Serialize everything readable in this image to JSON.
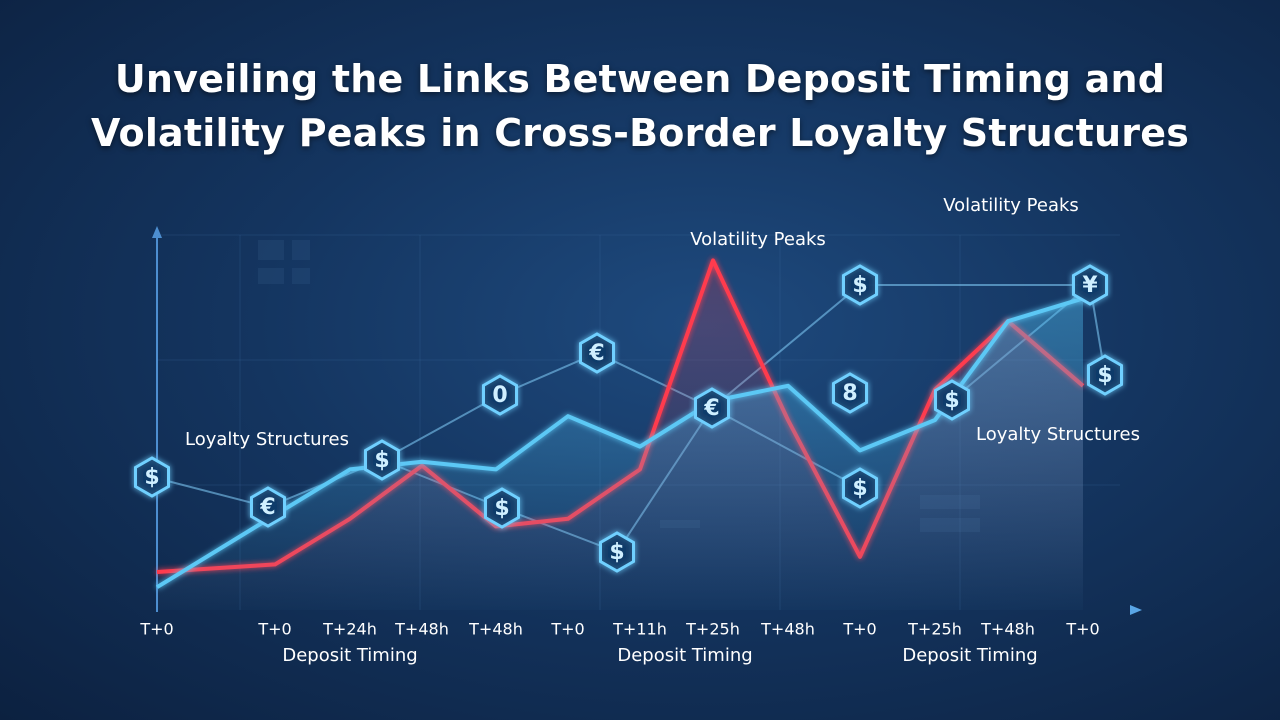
{
  "title": "Unveiling the Links Between Deposit Timing and Volatility Peaks in Cross-Border Loyalty Structures",
  "chart_data": {
    "type": "line",
    "categories": [
      "T+0",
      "T+0",
      "T+24h",
      "T+48h",
      "T+48h",
      "T+0",
      "T+11h",
      "T+25h",
      "T+48h",
      "T+0",
      "T+25h",
      "T+48h",
      "T+0"
    ],
    "series": [
      {
        "color": "#ff3b4e",
        "values": [
          10,
          12,
          24,
          38,
          22,
          24,
          37,
          92,
          50,
          14,
          58,
          76,
          59
        ]
      },
      {
        "color": "#5cc8f5",
        "values": [
          6,
          25,
          37,
          39,
          37,
          51,
          43,
          55,
          59,
          42,
          50,
          76,
          82
        ]
      }
    ],
    "ylim": [
      0,
      100
    ],
    "x_labels": [
      "Deposit Timing",
      "Deposit Timing",
      "Deposit Timing"
    ],
    "annotations": [
      "Volatility Peaks",
      "Volatility Peaks",
      "Loyalty Structures",
      "Loyalty Structures"
    ],
    "icons": [
      "$",
      "€",
      "$",
      "0",
      "€",
      "€",
      "$",
      "¥",
      "$",
      "$",
      "$",
      "$",
      "$",
      "8"
    ]
  }
}
